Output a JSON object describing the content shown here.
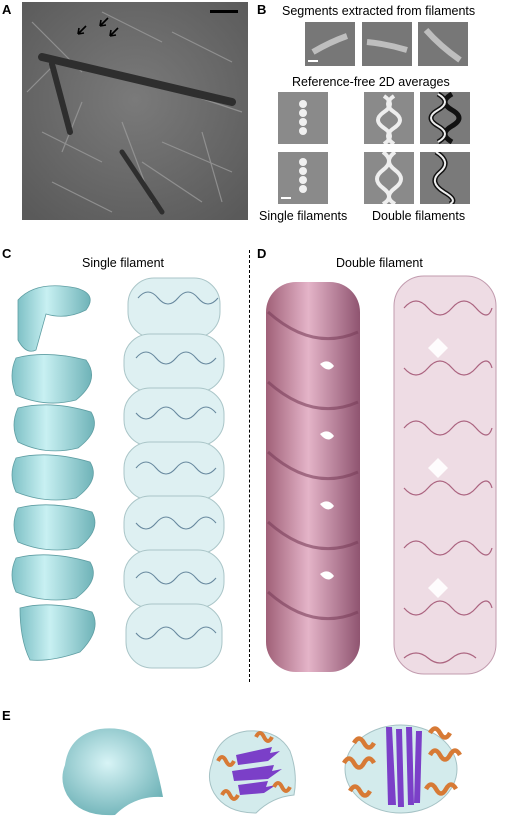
{
  "panels": {
    "A": {
      "letter": "A"
    },
    "B": {
      "letter": "B",
      "segments_title": "Segments extracted from filaments",
      "averages_title": "Reference-free 2D averages",
      "single_label": "Single filaments",
      "double_label": "Double filaments"
    },
    "C": {
      "letter": "C",
      "title": "Single filament"
    },
    "D": {
      "letter": "D",
      "title": "Double filament"
    },
    "E": {
      "letter": "E"
    }
  },
  "colors": {
    "single_surface": "#aee3e6",
    "single_shadow": "#6fb3b8",
    "double_surface": "#c98ea9",
    "double_shadow": "#8f5470",
    "helix_orange": "#d77a35",
    "sheet_purple": "#7b3fc8",
    "micrograph": "#6e6e6e"
  },
  "icons": [
    "arrow-icon",
    "scale-bar-icon"
  ]
}
